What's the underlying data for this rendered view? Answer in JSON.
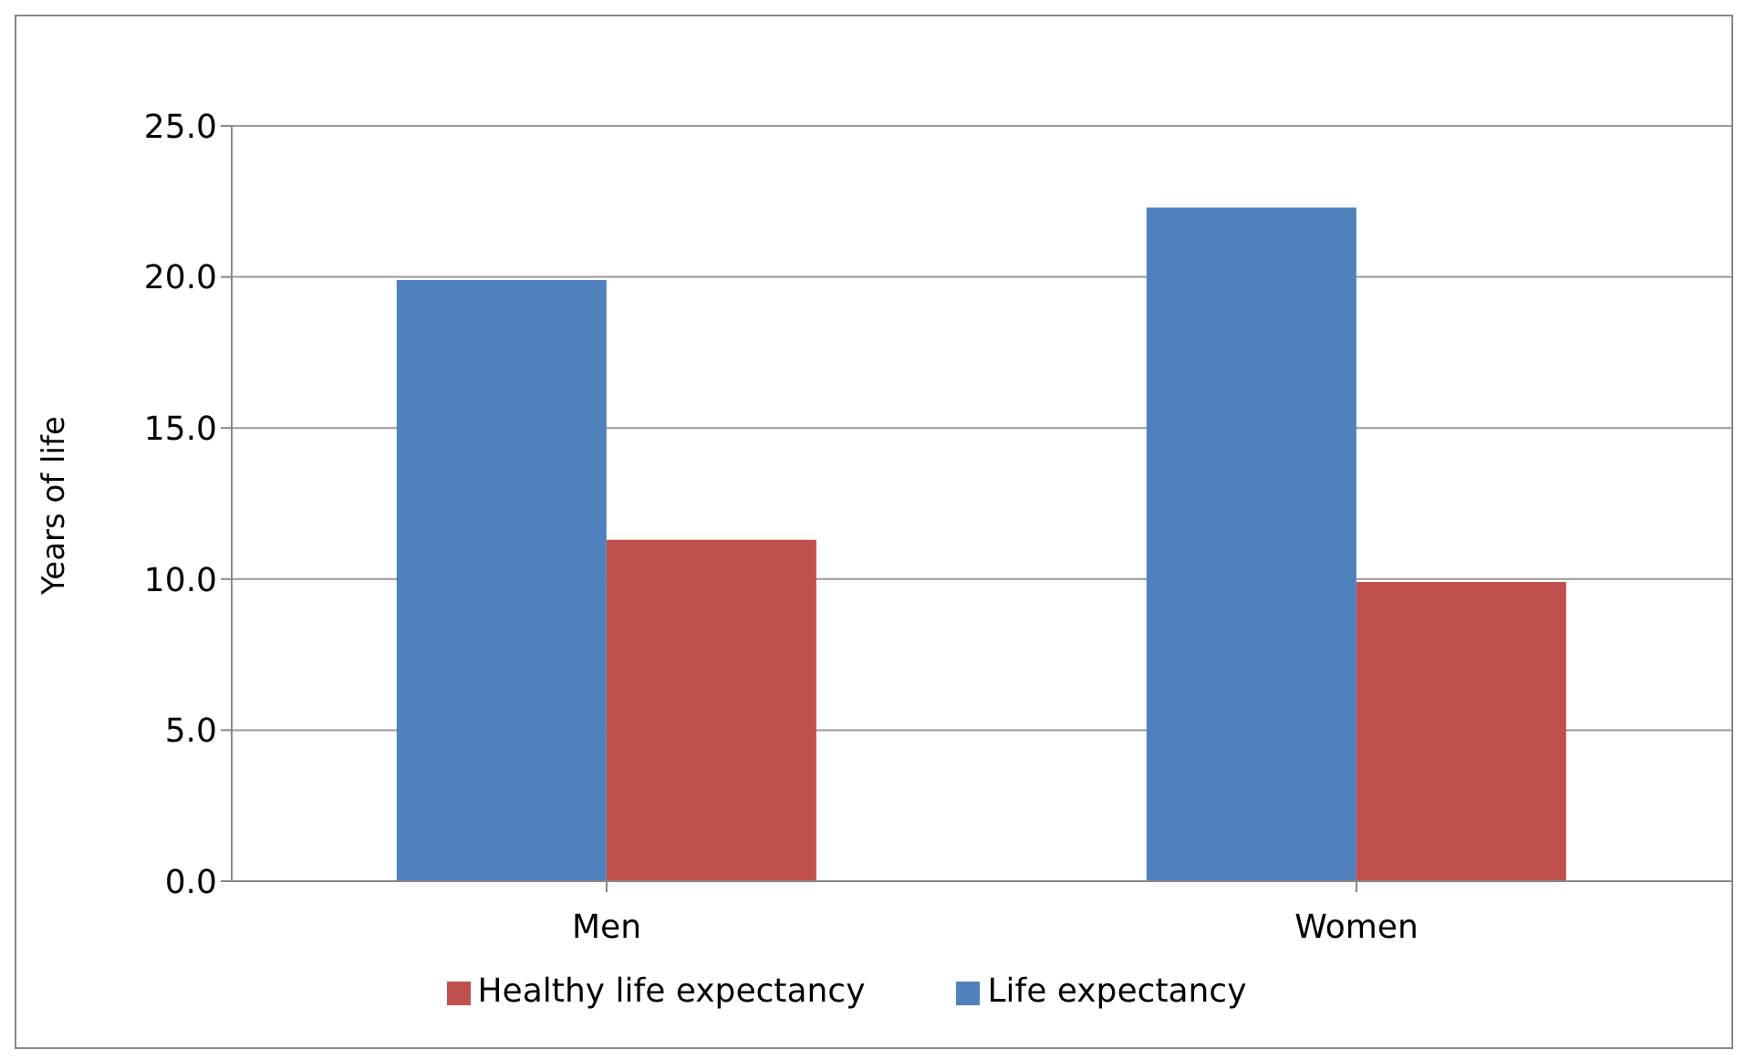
{
  "chart_data": {
    "type": "bar",
    "ylabel": "Years of life",
    "categories": [
      "Men",
      "Women"
    ],
    "series": [
      {
        "name": "Life expectancy",
        "color": "#4f81bd",
        "values": [
          19.9,
          22.3
        ]
      },
      {
        "name": "Healthy life expectancy",
        "color": "#c0504d",
        "values": [
          11.3,
          9.9
        ]
      }
    ],
    "ylim": [
      0,
      25
    ],
    "yticks": [
      {
        "value": 0,
        "label": "0.0"
      },
      {
        "value": 5,
        "label": "5.0"
      },
      {
        "value": 10,
        "label": "10.0"
      },
      {
        "value": 15,
        "label": "15.0"
      },
      {
        "value": 20,
        "label": "20.0"
      },
      {
        "value": 25,
        "label": "25.0"
      }
    ],
    "grid": "y",
    "legend": "bottom"
  }
}
